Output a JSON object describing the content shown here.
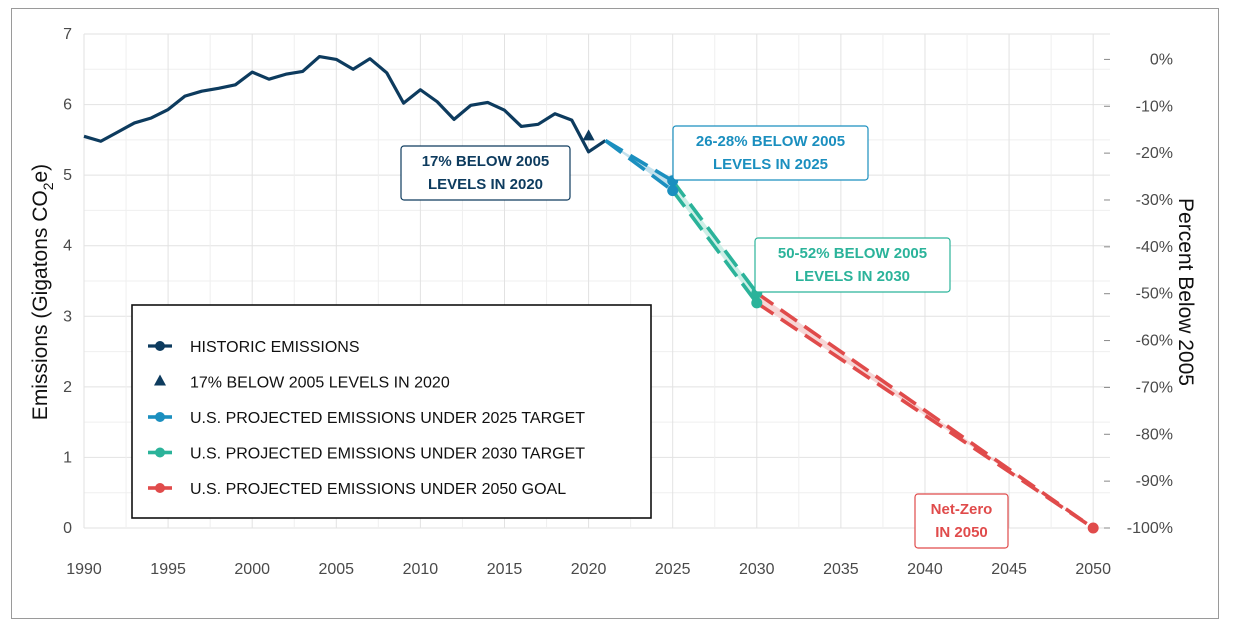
{
  "chart_data": {
    "type": "line",
    "xlabel": "",
    "ylabel_left": "Emissions (Gigatons CO",
    "ylabel_left_sub": "2",
    "ylabel_left_end": "e)",
    "ylabel_right": "Percent Below 2005",
    "xlim": [
      1990,
      2051
    ],
    "ylim": [
      0,
      7
    ],
    "x_ticks": [
      "1990",
      "1995",
      "2000",
      "2005",
      "2010",
      "2015",
      "2020",
      "2025",
      "2030",
      "2035",
      "2040",
      "2045",
      "2050"
    ],
    "y_ticks": [
      "0",
      "1",
      "2",
      "3",
      "4",
      "5",
      "6",
      "7"
    ],
    "right_ticks": [
      "0%",
      "-10%",
      "-20%",
      "-30%",
      "-40%",
      "-50%",
      "-60%",
      "-70%",
      "-80%",
      "-90%",
      "-100%"
    ],
    "grid": true,
    "legend_position": "bottom-left",
    "colors": {
      "historic": "#0d3b5e",
      "target_2025": "#1b8fbf",
      "target_2030": "#2bb39a",
      "goal_2050": "#e04b4b",
      "band_2025": "#b9dcea",
      "band_2030": "#c5ece3",
      "band_2050": "#f6cfcf"
    },
    "series": [
      {
        "name": "HISTORIC EMISSIONS",
        "x": [
          1990,
          1991,
          1992,
          1993,
          1994,
          1995,
          1996,
          1997,
          1998,
          1999,
          2000,
          2001,
          2002,
          2003,
          2004,
          2005,
          2006,
          2007,
          2008,
          2009,
          2010,
          2011,
          2012,
          2013,
          2014,
          2015,
          2016,
          2017,
          2018,
          2019,
          2020,
          2021
        ],
        "y": [
          5.55,
          5.48,
          5.61,
          5.74,
          5.81,
          5.93,
          6.12,
          6.19,
          6.23,
          6.28,
          6.46,
          6.36,
          6.43,
          6.47,
          6.68,
          6.64,
          6.5,
          6.65,
          6.45,
          6.02,
          6.21,
          6.04,
          5.79,
          5.99,
          6.03,
          5.92,
          5.69,
          5.72,
          5.87,
          5.78,
          5.33,
          5.49
        ]
      },
      {
        "name": "17% BELOW 2005 LEVELS IN 2020",
        "x": [
          2020
        ],
        "y": [
          5.55
        ]
      },
      {
        "name": "U.S. PROJECTED EMISSIONS UNDER 2025 TARGET",
        "x_upper": [
          2021,
          2025
        ],
        "y_upper": [
          5.49,
          4.92
        ],
        "x_lower": [
          2021,
          2025
        ],
        "y_lower": [
          5.49,
          4.78
        ]
      },
      {
        "name": "U.S. PROJECTED EMISSIONS UNDER 2030 TARGET",
        "x_upper": [
          2025,
          2030
        ],
        "y_upper": [
          4.92,
          3.33
        ],
        "x_lower": [
          2025,
          2030
        ],
        "y_lower": [
          4.78,
          3.19
        ]
      },
      {
        "name": "U.S. PROJECTED EMISSIONS UNDER 2050 GOAL",
        "x_upper": [
          2030,
          2050
        ],
        "y_upper": [
          3.33,
          0
        ],
        "x_lower": [
          2030,
          2050
        ],
        "y_lower": [
          3.19,
          0
        ]
      }
    ],
    "annotations": [
      {
        "lines": [
          "17% BELOW 2005",
          "LEVELS IN 2020"
        ],
        "color": "#0d3b5e"
      },
      {
        "lines": [
          "26-28% BELOW 2005",
          "LEVELS IN 2025"
        ],
        "color": "#1b8fbf"
      },
      {
        "lines": [
          "50-52% BELOW 2005",
          "LEVELS IN 2030"
        ],
        "color": "#2bb39a"
      },
      {
        "lines": [
          "Net-Zero",
          "IN 2050"
        ],
        "color": "#e04b4b"
      }
    ]
  }
}
